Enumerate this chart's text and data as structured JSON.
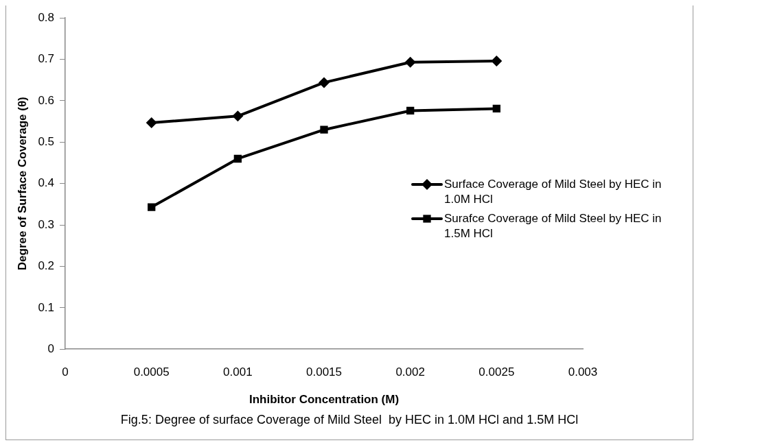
{
  "chart_data": {
    "type": "line",
    "xlabel": "Inhibitor Concentration (M)",
    "ylabel": "Degree of Surface Coverage (θ)",
    "x": [
      0.0005,
      0.001,
      0.0015,
      0.002,
      0.0025
    ],
    "series": [
      {
        "name": "Surface Coverage of Mild Steel by HEC in 1.0M HCl",
        "color": "#000000",
        "marker": "diamond",
        "values": [
          0.547,
          0.563,
          0.644,
          0.693,
          0.696
        ]
      },
      {
        "name": "Surafce Coverage of Mild Steel by HEC in 1.5M HCl",
        "color": "#000000",
        "marker": "square",
        "values": [
          0.343,
          0.46,
          0.53,
          0.576,
          0.581
        ]
      }
    ],
    "xlim": [
      0,
      0.003
    ],
    "xticks": [
      0,
      0.0005,
      0.001,
      0.0015,
      0.002,
      0.0025,
      0.003
    ],
    "ylim": [
      0,
      0.8
    ],
    "yticks": [
      0,
      0.1,
      0.2,
      0.3,
      0.4,
      0.5,
      0.6,
      0.7,
      0.8
    ],
    "grid": false,
    "legend": "right",
    "line_style": "solid",
    "annotations": [
      "Fig.5: Degree of surface Coverage of Mild Steel  by HEC in 1.0M HCl and 1.5M HCl"
    ]
  }
}
